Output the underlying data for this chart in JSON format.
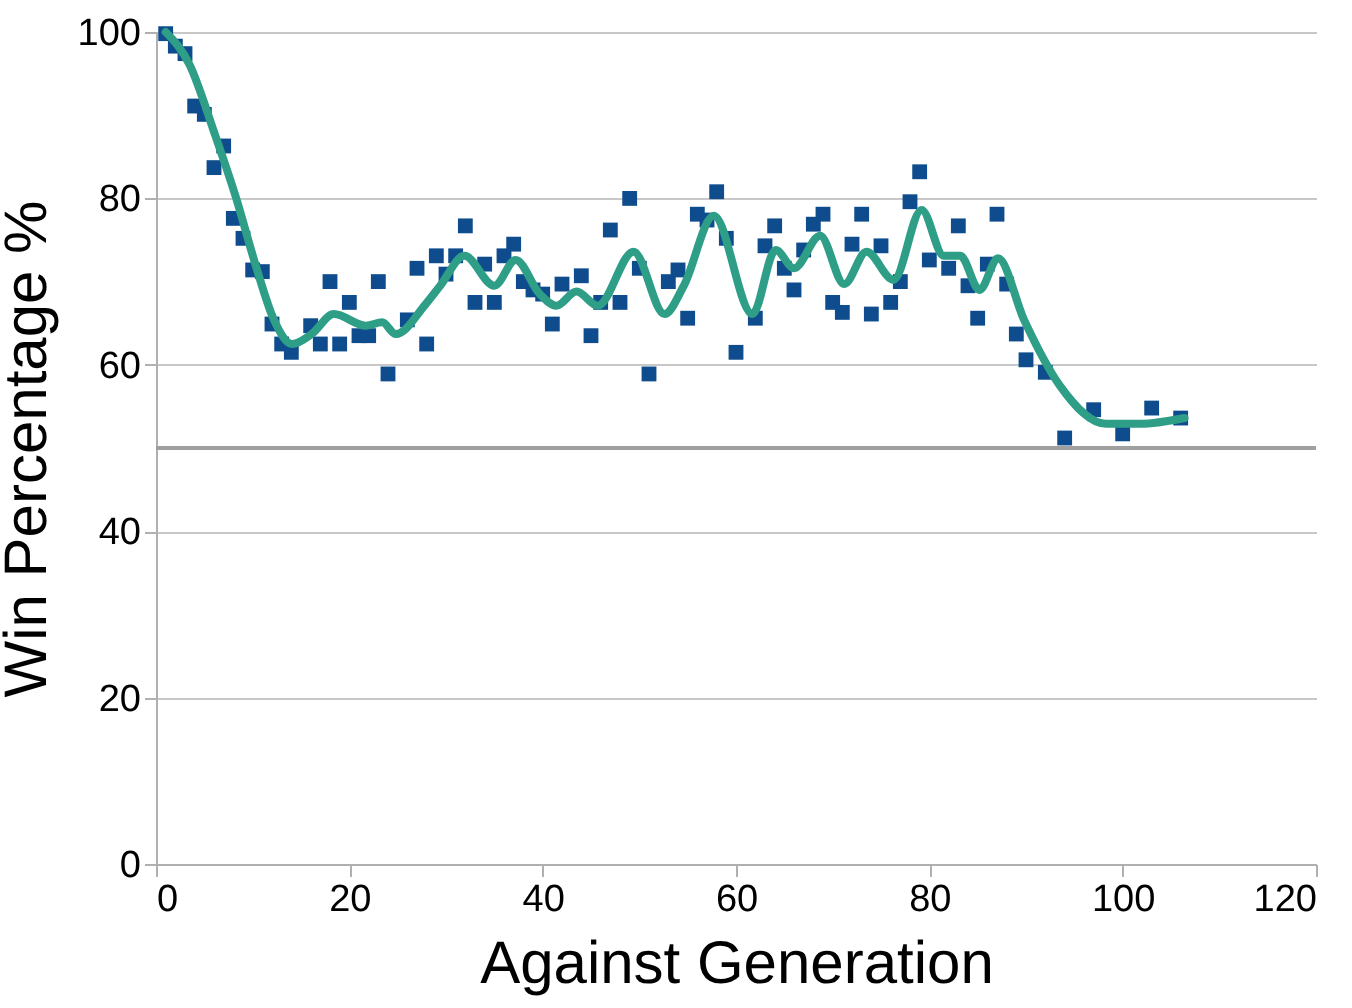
{
  "chart_data": {
    "type": "scatter",
    "xlabel": "Against Generation",
    "ylabel": "Win Percentage %",
    "xlim": [
      0,
      120
    ],
    "xticks": [
      0,
      20,
      40,
      60,
      80,
      100,
      120
    ],
    "ylim": [
      0,
      100
    ],
    "yticks": [
      0,
      20,
      40,
      60,
      80,
      100
    ],
    "grid": "y",
    "ref_lines": [
      {
        "axis": "y",
        "value": 50,
        "color": "#a0a0a0"
      }
    ],
    "series": [
      {
        "color": "#0e4c8e",
        "marker": "square",
        "x": [
          1,
          2,
          3,
          4,
          5,
          6,
          7,
          8,
          9,
          10,
          11,
          12,
          13,
          14,
          16,
          17,
          18,
          19,
          20,
          21,
          22,
          23,
          24,
          26,
          27,
          28,
          29,
          30,
          31,
          32,
          33,
          34,
          35,
          36,
          37,
          38,
          39,
          40,
          41,
          42,
          44,
          45,
          46,
          47,
          48,
          49,
          50,
          51,
          53,
          54,
          55,
          56,
          57,
          58,
          59,
          60,
          62,
          63,
          64,
          65,
          66,
          67,
          68,
          69,
          70,
          71,
          72,
          73,
          74,
          75,
          76,
          77,
          78,
          79,
          80,
          82,
          83,
          84,
          85,
          86,
          87,
          88,
          89,
          90,
          92,
          94,
          97,
          100,
          103,
          106
        ],
        "values": [
          99.8,
          98.3,
          97.4,
          91.1,
          90.1,
          83.7,
          86.3,
          77.6,
          75.2,
          71.4,
          71.2,
          64.9,
          62.5,
          61.5,
          64.7,
          62.5,
          70,
          62.5,
          67.5,
          63.5,
          63.5,
          70,
          58.9,
          65.4,
          71.6,
          62.5,
          73.1,
          70.9,
          73.1,
          76.7,
          67.5,
          72.1,
          67.5,
          73.1,
          74.5,
          70,
          69,
          68.5,
          64.9,
          69.7,
          70.7,
          63.5,
          67.5,
          76.2,
          67.5,
          80,
          71.6,
          58.9,
          70,
          71.4,
          65.6,
          78.1,
          77.4,
          80.8,
          75.2,
          61.5,
          65.6,
          74.3,
          76.7,
          71.6,
          69,
          73.8,
          76.9,
          78.1,
          67.5,
          66.3,
          74.5,
          78.1,
          66.1,
          74.3,
          67.5,
          70,
          79.6,
          83.2,
          72.6,
          71.6,
          76.7,
          69.5,
          65.6,
          72.1,
          78.1,
          69.7,
          63.7,
          60.6,
          59.1,
          51.2,
          54.6,
          51.7,
          54.8,
          53.6
        ]
      },
      {
        "type": "line",
        "color": "#2e9e87",
        "marker": "none",
        "x": [
          1,
          3.5,
          6,
          8.3,
          10.3,
          12.2,
          14.1,
          16.1,
          18.4,
          21.7,
          23.4,
          24.8,
          27.9,
          29.4,
          31.9,
          35,
          37.2,
          39.7,
          41.4,
          43.5,
          45.7,
          49.4,
          52.6,
          54.6,
          57.7,
          61.7,
          64.1,
          66,
          68.7,
          71.2,
          73.5,
          76.3,
          79.2,
          81.5,
          83.2,
          85.2,
          87.1,
          89.8,
          93.5,
          98.3,
          101.8,
          106.4
        ],
        "values": [
          100,
          96,
          88,
          80,
          72,
          65.4,
          62.5,
          63.7,
          66.1,
          64.7,
          65.1,
          63.7,
          67.3,
          69.5,
          73.1,
          69.5,
          72.6,
          68.5,
          67.1,
          68.8,
          67.1,
          73.6,
          66.1,
          69.5,
          77.9,
          66.1,
          73.8,
          71.6,
          75.5,
          69.7,
          73.6,
          70.2,
          78.6,
          73.1,
          73.1,
          69,
          72.8,
          65.4,
          57.5,
          52.9,
          52.9,
          53.6
        ]
      }
    ]
  }
}
